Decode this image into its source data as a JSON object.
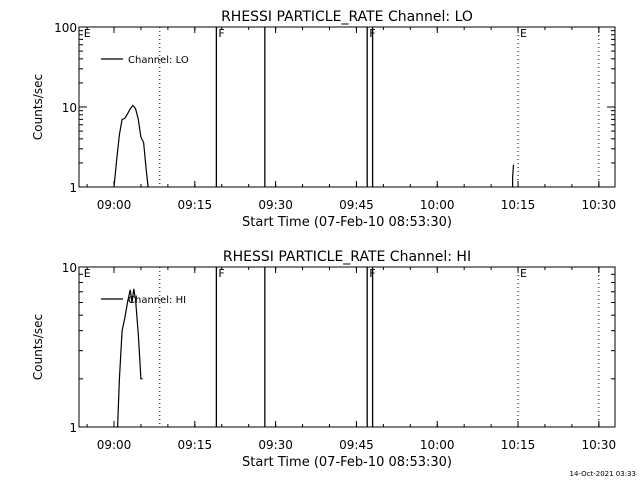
{
  "footer": "14-Oct-2021 03:33",
  "chart_data": [
    {
      "type": "line",
      "title": "RHESSI PARTICLE_RATE Channel: LO",
      "xlabel": "Start Time (07-Feb-10 08:53:30)",
      "ylabel": "Counts/sec",
      "yscale": "log",
      "ylim": [
        1,
        100
      ],
      "ytick_labels": [
        "1",
        "10",
        "100"
      ],
      "xlim": [
        "08:53:30",
        "10:33:00"
      ],
      "xtick_labels": [
        "09:00",
        "09:15",
        "09:30",
        "09:45",
        "10:00",
        "10:15",
        "10:30"
      ],
      "grid": false,
      "legend": {
        "position": "top-left",
        "entries": [
          "Channel: LO"
        ]
      },
      "series": [
        {
          "name": "Channel: LO",
          "points": [
            [
              "09:00:00",
              1.0
            ],
            [
              "09:00:30",
              2.2
            ],
            [
              "09:01:00",
              4.5
            ],
            [
              "09:01:30",
              7.0
            ],
            [
              "09:02:00",
              7.2
            ],
            [
              "09:02:30",
              8.2
            ],
            [
              "09:03:00",
              9.5
            ],
            [
              "09:03:30",
              10.5
            ],
            [
              "09:04:00",
              9.5
            ],
            [
              "09:04:30",
              7.0
            ],
            [
              "09:05:00",
              4.2
            ],
            [
              "09:05:30",
              3.6
            ],
            [
              "09:06:00",
              1.6
            ],
            [
              "09:06:20",
              1.0
            ]
          ]
        },
        {
          "name": "",
          "points": [
            [
              "10:14:00",
              1.0
            ],
            [
              "10:14:00",
              1.3
            ],
            [
              "10:14:10",
              1.9
            ]
          ]
        }
      ],
      "flag_lines": [
        {
          "time": "08:54:00",
          "label": "E",
          "style": "none"
        },
        {
          "time": "09:08:30",
          "label": "",
          "style": "dotted"
        },
        {
          "time": "09:19:00",
          "label": "F",
          "style": "solid"
        },
        {
          "time": "09:28:00",
          "label": "",
          "style": "solid"
        },
        {
          "time": "09:47:00",
          "label": "F",
          "style": "solid"
        },
        {
          "time": "09:48:00",
          "label": "",
          "style": "solid"
        },
        {
          "time": "10:15:00",
          "label": "E",
          "style": "dotted"
        },
        {
          "time": "10:30:00",
          "label": "",
          "style": "dotted"
        }
      ]
    },
    {
      "type": "line",
      "title": "RHESSI PARTICLE_RATE Channel: HI",
      "xlabel": "Start Time (07-Feb-10 08:53:30)",
      "ylabel": "Counts/sec",
      "yscale": "log",
      "ylim": [
        1,
        10
      ],
      "ytick_labels": [
        "1",
        "10"
      ],
      "xlim": [
        "08:53:30",
        "10:33:00"
      ],
      "xtick_labels": [
        "09:00",
        "09:15",
        "09:30",
        "09:45",
        "10:00",
        "10:15",
        "10:30"
      ],
      "grid": false,
      "legend": {
        "position": "top-left",
        "entries": [
          "Channel: HI"
        ]
      },
      "series": [
        {
          "name": "Channel: HI",
          "points": [
            [
              "09:00:40",
              1.0
            ],
            [
              "09:01:00",
              2.0
            ],
            [
              "09:01:30",
              4.0
            ],
            [
              "09:02:00",
              4.8
            ],
            [
              "09:02:30",
              6.0
            ],
            [
              "09:03:00",
              7.2
            ],
            [
              "09:03:20",
              6.0
            ],
            [
              "09:03:40",
              7.3
            ],
            [
              "09:04:00",
              6.2
            ],
            [
              "09:04:30",
              3.8
            ],
            [
              "09:05:00",
              2.0
            ],
            [
              "09:05:20",
              2.0
            ]
          ]
        }
      ],
      "flag_lines": [
        {
          "time": "08:54:00",
          "label": "E",
          "style": "none"
        },
        {
          "time": "09:08:30",
          "label": "",
          "style": "dotted"
        },
        {
          "time": "09:19:00",
          "label": "F",
          "style": "solid"
        },
        {
          "time": "09:28:00",
          "label": "",
          "style": "solid"
        },
        {
          "time": "09:47:00",
          "label": "F",
          "style": "solid"
        },
        {
          "time": "09:48:00",
          "label": "",
          "style": "solid"
        },
        {
          "time": "10:15:00",
          "label": "E",
          "style": "dotted"
        },
        {
          "time": "10:30:00",
          "label": "",
          "style": "dotted"
        }
      ]
    }
  ]
}
